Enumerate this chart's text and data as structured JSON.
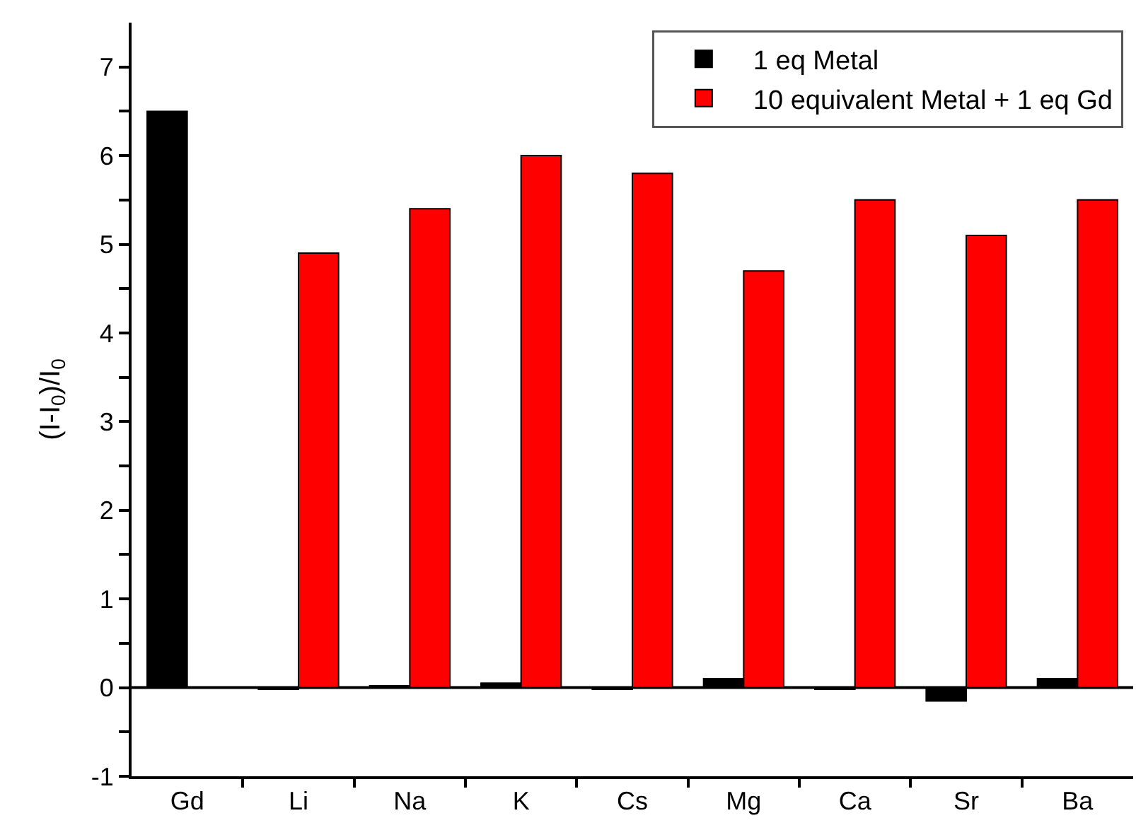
{
  "chart_data": {
    "type": "bar",
    "ylabel": "(I-I$_{0}$)/I$_{0}$",
    "categories": [
      "Gd",
      "Li",
      "Na",
      "K",
      "Cs",
      "Mg",
      "Ca",
      "Sr",
      "Ba"
    ],
    "series": [
      {
        "name": "1 eq Metal",
        "color": "#000000",
        "values": [
          6.5,
          -0.02,
          0.02,
          0.05,
          -0.02,
          0.1,
          -0.02,
          -0.15,
          0.1
        ]
      },
      {
        "name": "10 equivalent Metal + 1 eq Gd",
        "color": "#ff0000",
        "values": [
          null,
          4.9,
          5.4,
          6.0,
          5.8,
          4.7,
          5.5,
          5.1,
          5.5
        ]
      }
    ],
    "ylim": [
      -1,
      7.5
    ],
    "yticks": [
      -1,
      {
        "value": -0.5,
        "label": null
      },
      0,
      {
        "value": 0.5,
        "label": null
      },
      1,
      {
        "value": 1.5,
        "label": null
      },
      2,
      {
        "value": 2.5,
        "label": null
      },
      3,
      {
        "value": 3.5,
        "label": null
      },
      4,
      {
        "value": 4.5,
        "label": null
      },
      5,
      {
        "value": 5.5,
        "label": null
      },
      6,
      {
        "value": 6.5,
        "label": null
      },
      7
    ],
    "ref_lines": [
      {
        "axis": "y",
        "value": 0,
        "color": "#000000"
      }
    ],
    "grid": false,
    "legend": "top right"
  }
}
